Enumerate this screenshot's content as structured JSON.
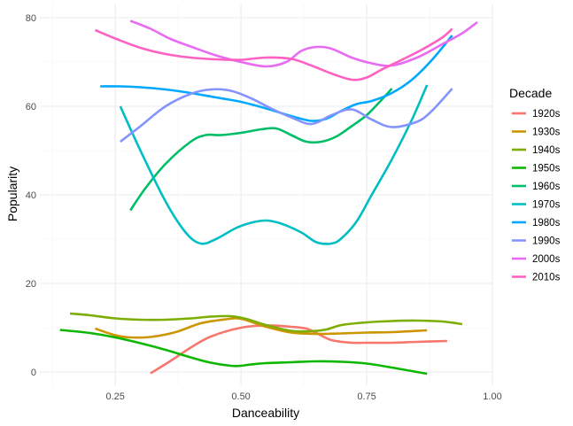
{
  "chart_data": {
    "type": "line",
    "title": "",
    "xlabel": "Danceability",
    "ylabel": "Popularity",
    "xlim": [
      0.1,
      1.0
    ],
    "ylim": [
      -3,
      83
    ],
    "x_ticks": [
      0.25,
      0.5,
      0.75,
      1.0
    ],
    "x_tick_labels": [
      "0.25",
      "0.50",
      "0.75",
      "1.00"
    ],
    "y_ticks": [
      0,
      20,
      40,
      60,
      80
    ],
    "y_tick_labels": [
      "0",
      "20",
      "40",
      "60",
      "80"
    ],
    "grid": true,
    "legend_title": "Decade",
    "legend_position": "right",
    "series": [
      {
        "name": "1920s",
        "color": "#F8766D",
        "x": [
          0.32,
          0.36,
          0.4,
          0.44,
          0.5,
          0.55,
          0.6,
          0.63,
          0.65,
          0.68,
          0.72,
          0.75,
          0.8,
          0.85,
          0.91
        ],
        "y": [
          -0.3,
          2.5,
          5.5,
          8.0,
          10.0,
          10.5,
          10.2,
          9.8,
          8.8,
          7.2,
          6.6,
          6.6,
          6.6,
          6.8,
          7.0
        ]
      },
      {
        "name": "1930s",
        "color": "#CD9600",
        "x": [
          0.21,
          0.25,
          0.28,
          0.32,
          0.37,
          0.42,
          0.47,
          0.5,
          0.55,
          0.6,
          0.65,
          0.7,
          0.75,
          0.8,
          0.87
        ],
        "y": [
          9.8,
          8.3,
          7.8,
          7.9,
          9.0,
          11.0,
          11.9,
          12.0,
          10.2,
          8.9,
          8.6,
          8.7,
          8.9,
          9.0,
          9.4
        ]
      },
      {
        "name": "1940s",
        "color": "#7CAE00",
        "x": [
          0.16,
          0.2,
          0.25,
          0.3,
          0.35,
          0.4,
          0.44,
          0.48,
          0.51,
          0.55,
          0.6,
          0.64,
          0.67,
          0.7,
          0.75,
          0.8,
          0.85,
          0.9,
          0.94
        ],
        "y": [
          13.2,
          12.8,
          12.1,
          11.8,
          11.8,
          12.1,
          12.5,
          12.6,
          12.0,
          10.6,
          9.3,
          9.2,
          9.6,
          10.6,
          11.2,
          11.5,
          11.6,
          11.4,
          10.8
        ]
      },
      {
        "name": "1950s",
        "color": "#0CB702",
        "x": [
          0.14,
          0.2,
          0.25,
          0.3,
          0.35,
          0.4,
          0.44,
          0.48,
          0.5,
          0.52,
          0.55,
          0.6,
          0.65,
          0.7,
          0.75,
          0.8,
          0.84,
          0.87
        ],
        "y": [
          9.5,
          8.8,
          7.8,
          6.5,
          5.0,
          3.3,
          2.1,
          1.4,
          1.4,
          1.7,
          2.0,
          2.2,
          2.4,
          2.3,
          1.9,
          1.0,
          0.2,
          -0.4
        ]
      },
      {
        "name": "1960s",
        "color": "#00BE67",
        "x": [
          0.28,
          0.31,
          0.35,
          0.4,
          0.43,
          0.46,
          0.5,
          0.54,
          0.57,
          0.6,
          0.63,
          0.66,
          0.69,
          0.72,
          0.75,
          0.78,
          0.8
        ],
        "y": [
          36.5,
          41.5,
          47.0,
          52.0,
          53.5,
          53.5,
          54.0,
          54.8,
          55.0,
          53.5,
          52.0,
          52.0,
          53.2,
          55.5,
          58.0,
          61.5,
          64.0
        ]
      },
      {
        "name": "1970s",
        "color": "#00BFC4",
        "x": [
          0.26,
          0.3,
          0.35,
          0.39,
          0.42,
          0.45,
          0.49,
          0.52,
          0.55,
          0.58,
          0.62,
          0.65,
          0.68,
          0.7,
          0.73,
          0.76,
          0.8,
          0.84,
          0.87
        ],
        "y": [
          60.0,
          50.0,
          38.5,
          31.5,
          29.0,
          30.0,
          32.5,
          33.7,
          34.2,
          33.5,
          31.5,
          29.3,
          29.0,
          30.2,
          34.0,
          40.0,
          48.0,
          57.0,
          64.8
        ]
      },
      {
        "name": "1980s",
        "color": "#00A9FF",
        "x": [
          0.22,
          0.26,
          0.3,
          0.35,
          0.4,
          0.45,
          0.5,
          0.55,
          0.6,
          0.64,
          0.67,
          0.7,
          0.73,
          0.76,
          0.8,
          0.84,
          0.88,
          0.92
        ],
        "y": [
          64.5,
          64.5,
          64.3,
          63.8,
          63.0,
          62.0,
          61.0,
          59.5,
          57.8,
          56.7,
          57.2,
          59.0,
          60.5,
          61.2,
          63.0,
          66.0,
          70.5,
          76.0
        ]
      },
      {
        "name": "1990s",
        "color": "#8494FF",
        "x": [
          0.26,
          0.3,
          0.35,
          0.4,
          0.44,
          0.48,
          0.52,
          0.56,
          0.6,
          0.64,
          0.68,
          0.72,
          0.76,
          0.8,
          0.85,
          0.88,
          0.92
        ],
        "y": [
          52.0,
          55.5,
          60.0,
          62.8,
          63.8,
          63.5,
          61.8,
          59.5,
          57.5,
          56.0,
          58.0,
          59.3,
          57.0,
          55.3,
          56.5,
          59.0,
          64.0
        ]
      },
      {
        "name": "2000s",
        "color": "#E76BF3",
        "x": [
          0.28,
          0.32,
          0.36,
          0.4,
          0.45,
          0.5,
          0.55,
          0.59,
          0.62,
          0.65,
          0.68,
          0.72,
          0.76,
          0.8,
          0.85,
          0.9,
          0.94,
          0.97
        ],
        "y": [
          79.3,
          77.5,
          75.2,
          73.5,
          71.5,
          70.0,
          69.0,
          70.0,
          72.5,
          73.4,
          73.0,
          71.0,
          69.7,
          69.2,
          71.0,
          74.0,
          76.5,
          79.0
        ]
      },
      {
        "name": "2010s",
        "color": "#FF61C3",
        "x": [
          0.21,
          0.25,
          0.3,
          0.35,
          0.4,
          0.45,
          0.5,
          0.55,
          0.6,
          0.64,
          0.68,
          0.72,
          0.75,
          0.78,
          0.82,
          0.86,
          0.9,
          0.92
        ],
        "y": [
          77.2,
          75.3,
          73.2,
          71.8,
          71.0,
          70.6,
          70.5,
          71.0,
          70.7,
          69.2,
          67.4,
          66.0,
          66.5,
          68.3,
          70.5,
          72.8,
          75.5,
          77.5
        ]
      }
    ]
  }
}
